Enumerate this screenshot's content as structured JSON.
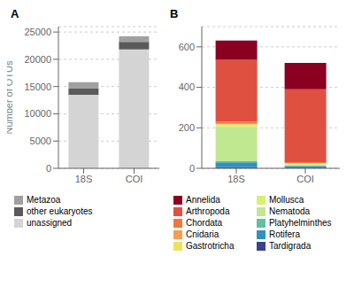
{
  "chart_data": [
    {
      "type": "bar",
      "title": "A",
      "stacked": true,
      "legend": "bottom",
      "grid": true,
      "categories": [
        "18S",
        "COI"
      ],
      "ylabel": "Number of OTUs",
      "series": [
        {
          "name": "unassigned",
          "color": "#d4d4d4",
          "values": [
            13500,
            21800
          ]
        },
        {
          "name": "other eukaryotes",
          "color": "#5a5a5a",
          "values": [
            1200,
            1400
          ]
        },
        {
          "name": "Metazoa",
          "color": "#a0a0a0",
          "values": [
            1100,
            1000
          ]
        }
      ],
      "ylim": [
        0,
        26000
      ],
      "yticks": [
        0,
        5000,
        10000,
        15000,
        20000,
        25000
      ]
    },
    {
      "type": "bar",
      "title": "B",
      "stacked": true,
      "legend": "bottom",
      "grid": true,
      "categories": [
        "18S",
        "COI"
      ],
      "series": [
        {
          "name": "Tardigrada",
          "color": "#404090",
          "values": [
            5,
            3
          ]
        },
        {
          "name": "Rotifera",
          "color": "#3090c0",
          "values": [
            25,
            8
          ]
        },
        {
          "name": "Platyhelminthes",
          "color": "#60c0a0",
          "values": [
            5,
            3
          ]
        },
        {
          "name": "Nematoda",
          "color": "#c0e890",
          "values": [
            170,
            5
          ]
        },
        {
          "name": "Mollusca",
          "color": "#d8f070",
          "values": [
            8,
            3
          ]
        },
        {
          "name": "Gastrotricha",
          "color": "#f0e060",
          "values": [
            5,
            2
          ]
        },
        {
          "name": "Cnidaria",
          "color": "#f0a050",
          "values": [
            5,
            2
          ]
        },
        {
          "name": "Chordata",
          "color": "#f07840",
          "values": [
            8,
            5
          ]
        },
        {
          "name": "Arthropoda",
          "color": "#e05040",
          "values": [
            305,
            360
          ]
        },
        {
          "name": "Annelida",
          "color": "#8b0020",
          "values": [
            95,
            130
          ]
        }
      ],
      "ylim": [
        0,
        700
      ],
      "yticks": [
        0,
        200,
        400,
        600
      ]
    }
  ]
}
